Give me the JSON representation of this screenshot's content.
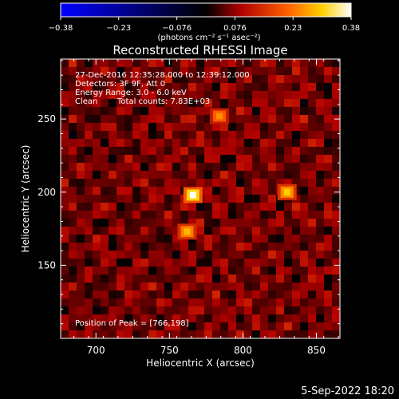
{
  "chart_data": {
    "type": "heatmap",
    "title": "Reconstructed RHESSI Image",
    "xlabel": "Heliocentric X (arcsec)",
    "ylabel": "Heliocentric Y (arcsec)",
    "xlim": [
      676,
      866
    ],
    "ylim": [
      100,
      291
    ],
    "xticks": [
      700,
      750,
      800,
      850
    ],
    "yticks": [
      150,
      200,
      250
    ],
    "colorbar": {
      "min": -0.38,
      "max": 0.38,
      "ticks": [
        "−0.38",
        "−0.23",
        "−0.076",
        "0.076",
        "0.23",
        "0.38"
      ],
      "unit_label": "(photons cm⁻² s⁻¹ asec⁻²)",
      "colors": [
        "#0000ff",
        "#000000",
        "#b00000",
        "#ff6000",
        "#ffd000",
        "#ffffff"
      ]
    },
    "info": {
      "line1": "27-Dec-2016 12:35:28.000 to 12:39:12.000",
      "line2": "Detectors: 3F 9F, Att 0",
      "line3": "Energy Range: 3.0 - 6.0 keV",
      "line4_method": "Clean",
      "line4_counts": "Total counts: 7.83E+03"
    },
    "peak_label": "Position of Peak = [766,198]",
    "peaks": [
      {
        "x": 766,
        "y": 198,
        "value": 0.38
      },
      {
        "x": 830,
        "y": 200,
        "value": 0.3
      },
      {
        "x": 762,
        "y": 173,
        "value": 0.28
      },
      {
        "x": 784,
        "y": 252,
        "value": 0.24
      }
    ]
  },
  "footer": {
    "date": "5-Sep-2022 18:20"
  }
}
